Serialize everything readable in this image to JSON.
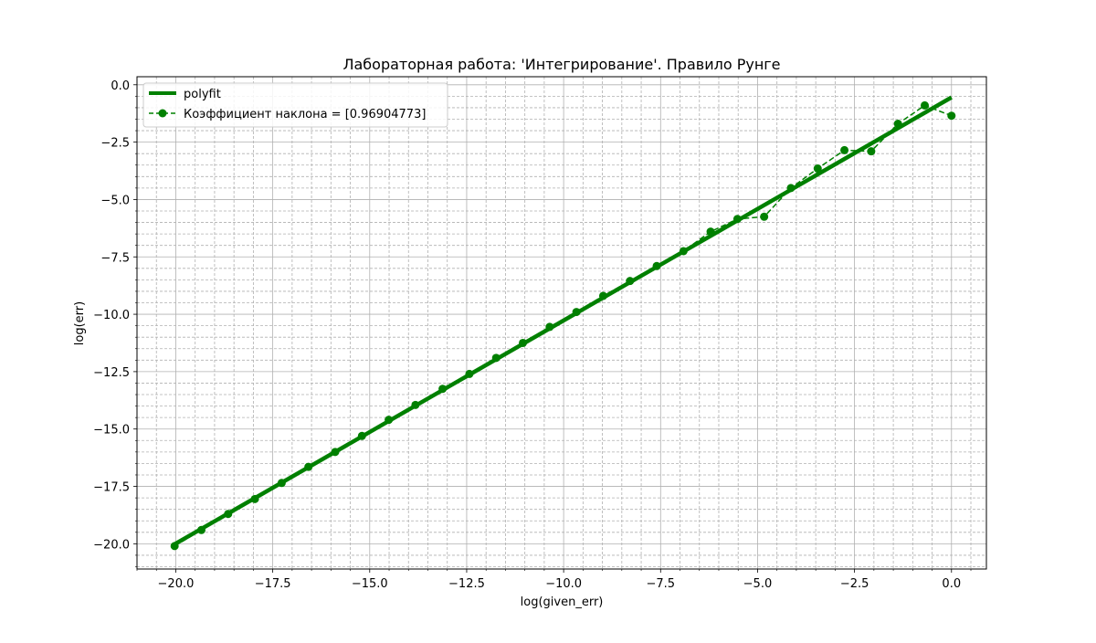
{
  "chart_data": {
    "type": "line",
    "title": "Лабораторная работа: 'Интегрирование'. Правило Рунге",
    "xlabel": "log(given_err)",
    "ylabel": "log(err)",
    "xlim": [
      -21.0,
      0.9
    ],
    "ylim": [
      -21.1,
      0.35
    ],
    "x_ticks": [
      -20.0,
      -17.5,
      -15.0,
      -12.5,
      -10.0,
      -7.5,
      -5.0,
      -2.5,
      0.0
    ],
    "x_tick_labels": [
      "−20.0",
      "−17.5",
      "−15.0",
      "−12.5",
      "−10.0",
      "−7.5",
      "−5.0",
      "−2.5",
      "0.0"
    ],
    "y_ticks": [
      0.0,
      -2.5,
      -5.0,
      -7.5,
      -10.0,
      -12.5,
      -15.0,
      -17.5,
      -20.0
    ],
    "y_tick_labels": [
      "0.0",
      "−2.5",
      "−5.0",
      "−7.5",
      "−10.0",
      "−12.5",
      "−15.0",
      "−17.5",
      "−20.0"
    ],
    "grid": true,
    "minor_grid": true,
    "legend_position": "top-left",
    "color": "#008000",
    "series": [
      {
        "name": "polyfit",
        "style": "solid-thick",
        "x": [
          -20.03,
          0.0
        ],
        "y": [
          -20.02,
          -0.55
        ]
      },
      {
        "name": "Коэффициент наклона = [0.96904773]",
        "style": "dashed-markers",
        "x": [
          -20.03,
          -19.34,
          -18.65,
          -17.96,
          -17.27,
          -16.58,
          -15.89,
          -15.2,
          -14.51,
          -13.82,
          -13.12,
          -12.43,
          -11.74,
          -11.05,
          -10.36,
          -9.67,
          -8.98,
          -8.29,
          -7.6,
          -6.91,
          -6.21,
          -5.52,
          -4.83,
          -4.14,
          -3.45,
          -2.76,
          -2.07,
          -1.38,
          -0.69,
          0.0
        ],
        "y": [
          -20.1,
          -19.4,
          -18.7,
          -18.05,
          -17.35,
          -16.65,
          -16.0,
          -15.3,
          -14.6,
          -13.95,
          -13.25,
          -12.6,
          -11.9,
          -11.25,
          -10.55,
          -9.9,
          -9.2,
          -8.55,
          -7.9,
          -7.25,
          -6.4,
          -5.85,
          -5.75,
          -4.5,
          -3.65,
          -2.85,
          -2.9,
          -1.7,
          -0.9,
          -1.35
        ]
      }
    ]
  }
}
